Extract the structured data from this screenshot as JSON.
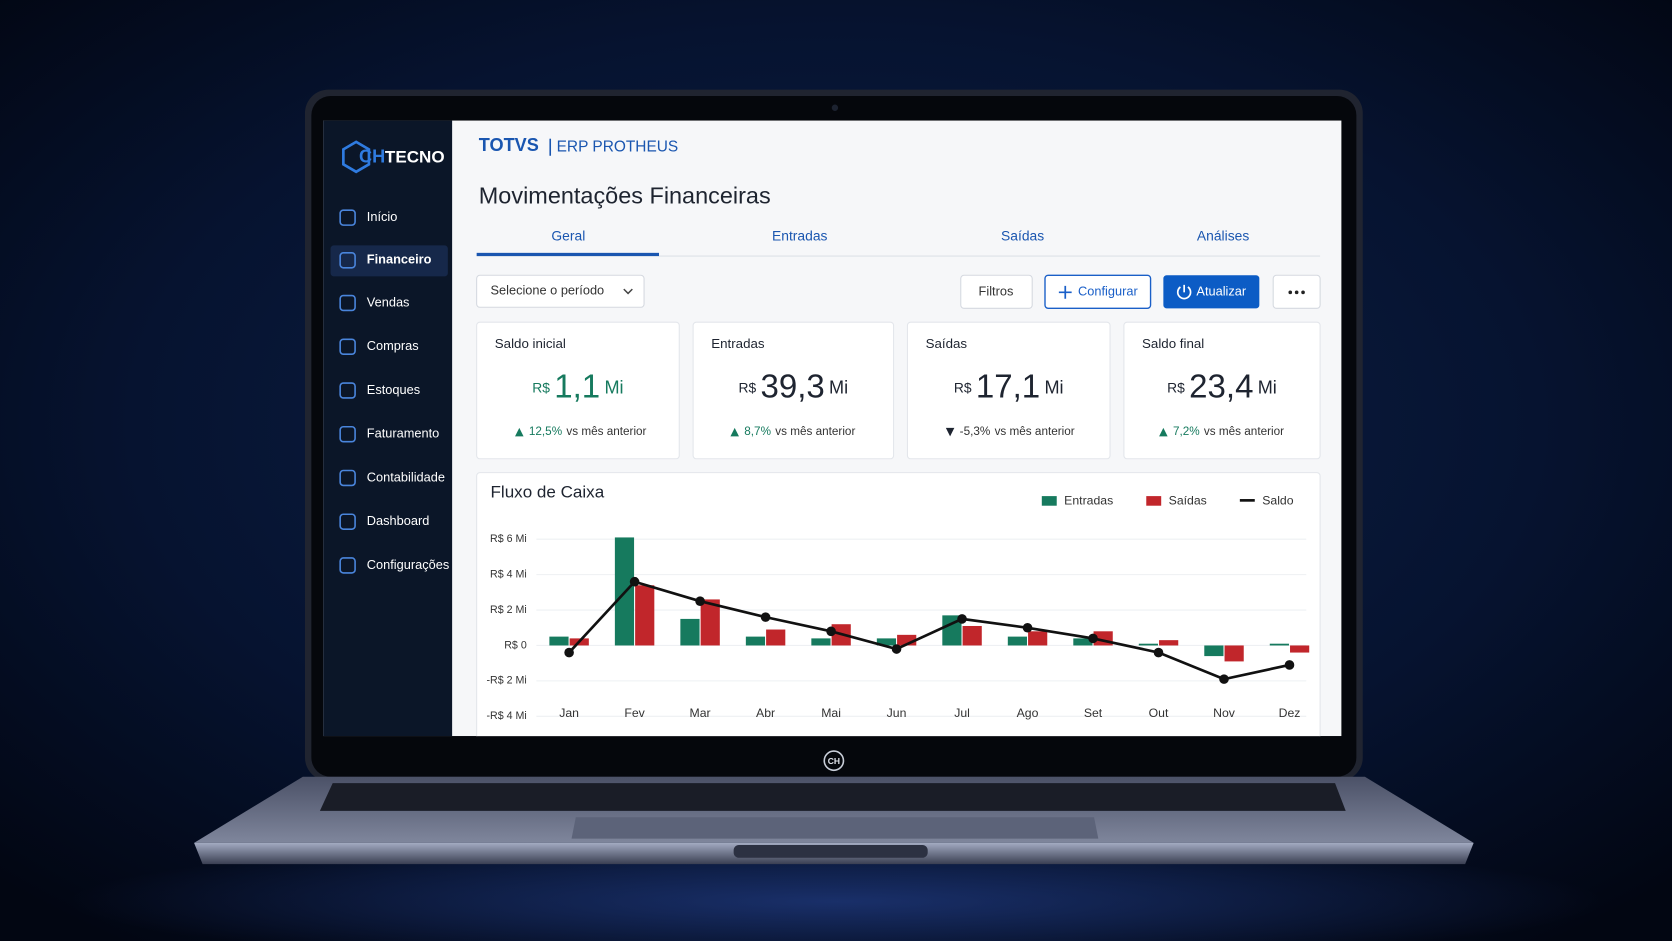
{
  "sidebar": {
    "logo_mark": "CH",
    "logo_text": "TECNO",
    "menu": [
      "Início",
      "Financeiro",
      "Vendas",
      "Compras",
      "Estoques",
      "Faturamento",
      "Contabilidade",
      "Dashboard",
      "Configurações"
    ],
    "active": 1
  },
  "header": {
    "brand": "TOTVS",
    "product": "ERP PROTHEUS",
    "title": "Movimentações Financeiras"
  },
  "tabs": [
    "Geral",
    "Entradas",
    "Saídas",
    "Análises"
  ],
  "toolbar": {
    "period": "Selecione o período",
    "filters": "Filtros",
    "configure": "Configurar",
    "refresh": "Atualizar"
  },
  "cards": [
    {
      "label": "Saldo inicial",
      "currency": "R$",
      "value": "1,1",
      "unit": "Mi",
      "change": "12,5%",
      "compare": "vs mês anterior",
      "trend": "up"
    },
    {
      "label": "Entradas",
      "currency": "R$",
      "value": "39,3",
      "unit": "Mi",
      "change": "8,7%",
      "compare": "vs mês anterior",
      "trend": "up"
    },
    {
      "label": "Saídas",
      "currency": "R$",
      "value": "17,1",
      "unit": "Mi",
      "change": "-5,3%",
      "compare": "vs mês anterior",
      "trend": "down"
    },
    {
      "label": "Saldo final",
      "currency": "R$",
      "value": "23,4",
      "unit": "Mi",
      "change": "7,2%",
      "compare": "vs mês anterior",
      "trend": "up"
    }
  ],
  "chart_data": {
    "type": "bar",
    "title": "Fluxo de Caixa",
    "categories": [
      "Jan",
      "Fev",
      "Mar",
      "Abr",
      "Mai",
      "Jun",
      "Jul",
      "Ago",
      "Set",
      "Out",
      "Nov",
      "Dez"
    ],
    "series": [
      {
        "name": "Entradas",
        "color": "#167a5e",
        "values": [
          0.5,
          6.1,
          1.5,
          0.5,
          0.4,
          0.4,
          1.7,
          0.5,
          0.4,
          0.1,
          -0.6,
          0.1
        ]
      },
      {
        "name": "Saídas",
        "color": "#c1262b",
        "values": [
          0.4,
          3.4,
          2.6,
          0.9,
          1.2,
          0.6,
          1.1,
          0.8,
          0.8,
          0.3,
          -0.9,
          -0.4
        ]
      },
      {
        "name": "Saldo",
        "color": "#111111",
        "type": "line",
        "values": [
          -0.4,
          3.6,
          2.5,
          1.6,
          0.8,
          -0.2,
          1.5,
          1.0,
          0.4,
          -0.4,
          -1.9,
          -1.1
        ]
      }
    ],
    "ylim": [
      -4,
      6
    ],
    "yticks": [
      {
        "value": -4,
        "label": "-R$ 4 Mi"
      },
      {
        "value": -2,
        "label": "-R$ 2 Mi"
      },
      {
        "value": 0,
        "label": "R$ 0"
      },
      {
        "value": 2,
        "label": "R$ 2 Mi"
      },
      {
        "value": 4,
        "label": "R$ 4 Mi"
      },
      {
        "value": 6,
        "label": "R$ 6 Mi"
      }
    ],
    "grid": true,
    "legend": "top-right"
  },
  "device_logo": "CH"
}
